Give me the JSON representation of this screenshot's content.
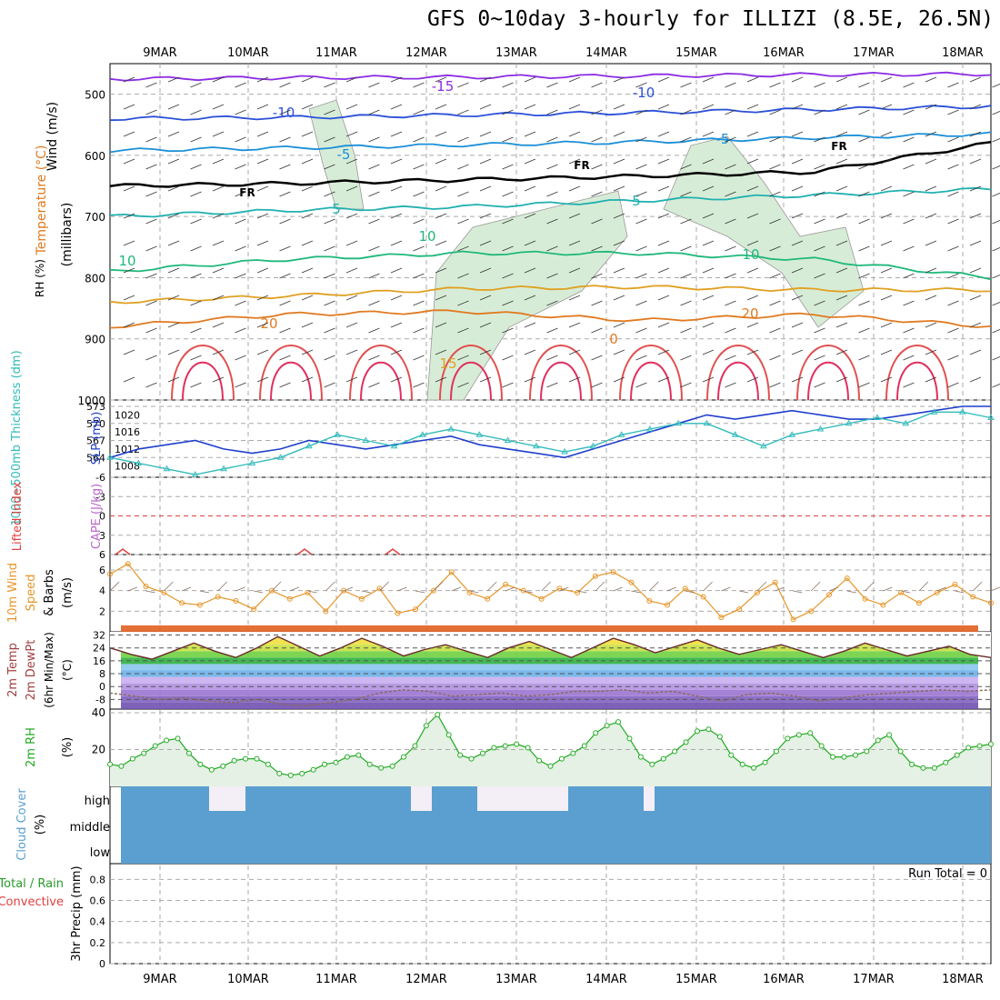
{
  "title": "GFS 0~10day 3-hourly for ILLIZI (8.5E, 26.5N)",
  "date_labels": [
    "9MAR",
    "10MAR",
    "11MAR",
    "12MAR",
    "13MAR",
    "14MAR",
    "15MAR",
    "16MAR",
    "17MAR",
    "18MAR"
  ],
  "colors": {
    "frame": "#000000",
    "grid": "#aaaaaa",
    "rh_fill": "#d7ecd7",
    "wind_barb": "#333333",
    "slp": "#1f3fcc",
    "thickness": "#33bbbb",
    "wind_speed": "#e6962a",
    "rh2m_line": "#22aa22",
    "cloud": "#5a9fd0",
    "dewpoint": "#8a6a5a"
  },
  "chart_data": [
    {
      "id": "upper_air",
      "type": "contour",
      "panel_labels": {
        "wind": "Wind (m/s)",
        "temp": "Temperature (°C)",
        "rh": "RH (%)",
        "units": "(millibars)"
      },
      "y_ticks": [
        500,
        600,
        700,
        800,
        900,
        1000
      ],
      "ylim": [
        450,
        1000
      ],
      "freezing_label": "FR",
      "isotherm_labels": [
        {
          "text": "-15",
          "color": "#8a2be2"
        },
        {
          "text": "-10",
          "color": "#2a4fd8"
        },
        {
          "text": "-10",
          "color": "#2a4fd8"
        },
        {
          "text": "-5",
          "color": "#1a8fd8"
        },
        {
          "text": "-5",
          "color": "#1a8fd8"
        },
        {
          "text": "FR",
          "color": "#000000"
        },
        {
          "text": "FR",
          "color": "#000000"
        },
        {
          "text": "FR",
          "color": "#000000"
        },
        {
          "text": "5",
          "color": "#20b0b0"
        },
        {
          "text": "5",
          "color": "#20b0b0"
        },
        {
          "text": "10",
          "color": "#1fb87a"
        },
        {
          "text": "10",
          "color": "#1fb87a"
        },
        {
          "text": "10",
          "color": "#1fb87a"
        },
        {
          "text": "20",
          "color": "#e07a20"
        },
        {
          "text": "20",
          "color": "#e07a20"
        },
        {
          "text": "0",
          "color": "#e07a20"
        },
        {
          "text": "15",
          "color": "#e0a020"
        }
      ],
      "isotherms": [
        {
          "temp": -15,
          "color": "#8a2be2",
          "p": [
            475,
            473,
            472,
            470,
            468,
            467
          ]
        },
        {
          "temp": -10,
          "color": "#2a4fd8",
          "p": [
            540,
            538,
            534,
            530,
            525,
            520
          ]
        },
        {
          "temp": -5,
          "color": "#1a8fd8",
          "p": [
            592,
            588,
            583,
            578,
            571,
            565
          ]
        },
        {
          "temp": 0,
          "color": "#000000",
          "p": [
            650,
            646,
            640,
            634,
            627,
            580
          ]
        },
        {
          "temp": 5,
          "color": "#20b0b0",
          "p": [
            700,
            690,
            684,
            674,
            665,
            655
          ]
        },
        {
          "temp": 10,
          "color": "#1fb87a",
          "p": [
            790,
            770,
            760,
            760,
            770,
            800
          ]
        },
        {
          "temp": 15,
          "color": "#e0a020",
          "p": [
            840,
            830,
            818,
            815,
            820,
            820
          ]
        },
        {
          "temp": 20,
          "color": "#e07a20",
          "p": [
            880,
            860,
            855,
            870,
            860,
            880
          ]
        }
      ]
    },
    {
      "id": "slp_thickness",
      "type": "line",
      "left_label": "1000~500mb Thickness (dm)",
      "right_label": "SLP (mb)",
      "left_ticks": [
        "573",
        "570",
        "567",
        "564"
      ],
      "right_ticks": [
        "1020",
        "1016",
        "1012",
        "1008"
      ],
      "series": [
        {
          "name": "SLP (mb)",
          "values": [
            1010,
            1012,
            1013,
            1014,
            1012,
            1011,
            1012,
            1014,
            1013,
            1012,
            1013,
            1014,
            1015,
            1013,
            1012,
            1011,
            1010,
            1012,
            1014,
            1016,
            1018,
            1020,
            1019,
            1020,
            1021,
            1020,
            1019,
            1019,
            1020,
            1021,
            1022,
            1022
          ]
        },
        {
          "name": "1000~500mb Thickness (dm)",
          "values": [
            564,
            563,
            562,
            561,
            562,
            563,
            564,
            566,
            568,
            567,
            566,
            568,
            569,
            568,
            567,
            566,
            565,
            566,
            568,
            569,
            570,
            570,
            568,
            566,
            568,
            569,
            570,
            571,
            570,
            572,
            572,
            571
          ]
        }
      ]
    },
    {
      "id": "stability",
      "type": "line",
      "labels": {
        "li": "Lifted Index",
        "cape": "CAPE (J/kg)"
      },
      "y_ticks": [
        "-6",
        "-3",
        "0",
        "3",
        "6"
      ],
      "ylim": [
        -6,
        6
      ],
      "series": [
        {
          "name": "Lifted Index",
          "values": [
            6,
            6,
            6,
            6,
            6,
            6,
            6,
            6,
            6,
            6
          ]
        }
      ]
    },
    {
      "id": "wind10m",
      "type": "line",
      "labels": {
        "a": "10m Wind",
        "b": "Speed",
        "c": "& Barbs",
        "units": "(m/s)"
      },
      "y_ticks": [
        "6",
        "4",
        "2"
      ],
      "ylim": [
        0,
        7.5
      ],
      "series": [
        {
          "name": "10m Wind Speed",
          "values": [
            5.6,
            6.6,
            4.4,
            3.8,
            2.8,
            2.6,
            3.4,
            3.0,
            2.2,
            4.0,
            3.2,
            3.8,
            2.0,
            4.0,
            3.2,
            4.2,
            1.8,
            2.2,
            4.0,
            5.8,
            3.8,
            3.2,
            4.6,
            4.0,
            3.2,
            4.2,
            3.8,
            5.4,
            5.8,
            4.8,
            3.0,
            2.6,
            4.2,
            3.4,
            1.4,
            2.2,
            3.8,
            4.8,
            1.2,
            2.0,
            3.6,
            5.2,
            3.2,
            2.6,
            3.8,
            2.8,
            3.8,
            4.6,
            3.4,
            2.8
          ]
        }
      ]
    },
    {
      "id": "temp2m",
      "type": "area",
      "labels": {
        "a": "2m Temp",
        "b": "2m DewPt",
        "c": "(6hr Min/Max)",
        "units": "(°C)"
      },
      "y_ticks": [
        "32",
        "24",
        "16",
        "8",
        "0",
        "-8"
      ],
      "ylim": [
        -14,
        34
      ],
      "band_colors": [
        "#7050b0",
        "#8060c0",
        "#9a74d0",
        "#b090e0",
        "#c8aef0",
        "#6bb0e8",
        "#8ac4f0",
        "#2db040",
        "#70d040",
        "#c8e040",
        "#f0e040",
        "#f0b020",
        "#e06020"
      ],
      "series": [
        {
          "name": "2m Temp",
          "values": [
            24,
            20,
            17,
            22,
            27,
            22,
            18,
            24,
            31,
            25,
            19,
            24,
            30,
            25,
            19,
            23,
            26,
            22,
            18,
            24,
            28,
            23,
            18,
            24,
            30,
            26,
            21,
            25,
            29,
            24,
            20,
            23,
            26,
            22,
            18,
            22,
            27,
            23,
            19,
            22,
            25,
            20,
            18
          ]
        },
        {
          "name": "2m DewPt",
          "values": [
            -4,
            -6,
            -8,
            -7,
            -9,
            -10,
            -8,
            -11,
            -12,
            -10,
            -8,
            -4,
            -2,
            -3,
            -6,
            -5,
            -4,
            -6,
            -5,
            -3,
            -3,
            -2,
            -4,
            -3,
            -6,
            -9,
            -5,
            -4,
            -6,
            -9,
            -7,
            -5,
            -4,
            -3,
            -2,
            -3,
            -2
          ]
        }
      ]
    },
    {
      "id": "rh2m",
      "type": "area",
      "labels": {
        "name": "2m RH",
        "units": "(%)"
      },
      "y_ticks": [
        "40",
        "20"
      ],
      "ylim": [
        0,
        42
      ],
      "series": [
        {
          "name": "2m RH",
          "values": [
            12,
            11,
            15,
            18,
            22,
            25,
            26,
            18,
            12,
            9,
            11,
            14,
            15,
            15,
            12,
            7,
            6,
            7,
            9,
            12,
            13,
            16,
            17,
            12,
            10,
            11,
            16,
            22,
            33,
            39,
            28,
            17,
            15,
            18,
            21,
            22,
            23,
            21,
            14,
            11,
            15,
            18,
            22,
            29,
            33,
            35,
            26,
            16,
            12,
            15,
            19,
            24,
            30,
            31,
            27,
            17,
            12,
            10,
            13,
            19,
            26,
            28,
            29,
            22,
            16,
            16,
            17,
            19,
            25,
            28,
            19,
            12,
            10,
            10,
            13,
            17,
            21,
            22,
            23
          ]
        }
      ]
    },
    {
      "id": "cloud_cover",
      "type": "bar",
      "labels": {
        "name": "Cloud Cover",
        "units": "(%)"
      },
      "levels": [
        "high",
        "middle",
        "low"
      ]
    },
    {
      "id": "precip",
      "type": "bar",
      "labels": {
        "a": "Total / Rain",
        "b": "Convective",
        "c": "3hr Precip (mm)"
      },
      "run_total": "Run Total = 0",
      "y_ticks": [
        "0.8",
        "0.6",
        "0.4",
        "0.2",
        "0"
      ],
      "ylim": [
        0,
        0.95
      ],
      "values": []
    }
  ]
}
